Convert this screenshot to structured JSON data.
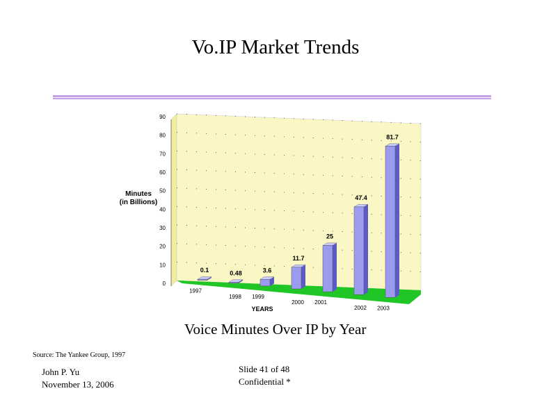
{
  "slide": {
    "title": "Vo.IP Market Trends",
    "caption": "Voice Minutes Over IP by Year",
    "source": "Source: The Yankee Group, 1997",
    "author": "John P. Yu",
    "date": "November 13, 2006",
    "slide_number": "Slide 41  of 48",
    "confidential": "Confidential *"
  },
  "colors": {
    "bar_front": "#9b9cf0",
    "bar_side": "#5a5bc8",
    "bar_top": "#c9caff",
    "back_wall": "#fbf7c4",
    "side_wall": "#f2ee9e",
    "floor": "#22e62a",
    "rule": "#c7a0e8"
  },
  "chart_data": {
    "type": "bar",
    "title": "",
    "xlabel": "YEARS",
    "ylabel_line1": "Minutes",
    "ylabel_line2": "(in Billions)",
    "ylim": [
      0,
      90
    ],
    "yticks": [
      "0",
      "10",
      "20",
      "30",
      "40",
      "50",
      "60",
      "70",
      "80",
      "90"
    ],
    "categories": [
      "1997",
      "1998",
      "1999",
      "2000",
      "2001",
      "2002",
      "2003"
    ],
    "values": [
      0.1,
      0.48,
      3.6,
      11.7,
      25,
      47.4,
      81.7
    ],
    "value_labels": [
      "0.1",
      "0.48",
      "3.6",
      "11.7",
      "25",
      "47.4",
      "81.7"
    ],
    "grid": true,
    "style": "3d"
  }
}
